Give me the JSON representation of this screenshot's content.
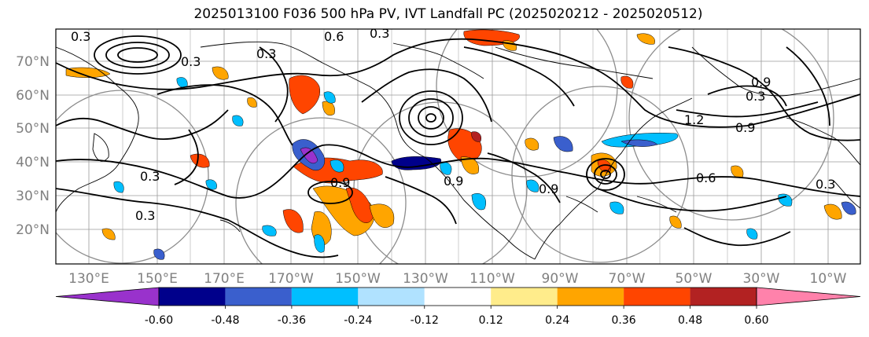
{
  "title": "2025013100 F036 500 hPa PV, IVT Landfall PC (2025020212 - 2025020512)",
  "lat_ticks": [
    "70°N",
    "60°N",
    "50°N",
    "40°N",
    "30°N",
    "20°N"
  ],
  "lon_ticks": [
    "130°E",
    "150°E",
    "170°E",
    "170°W",
    "150°W",
    "130°W",
    "110°W",
    "90°W",
    "70°W",
    "50°W",
    "30°W",
    "10°W"
  ],
  "colorbar": {
    "tick_labels": [
      "-0.60",
      "-0.48",
      "-0.36",
      "-0.24",
      "-0.12",
      "0.12",
      "0.24",
      "0.36",
      "0.48",
      "0.60"
    ],
    "colors": [
      "#9932CC",
      "#00008B",
      "#3A5FCD",
      "#00BFFF",
      "#B0E2FF",
      "#FFFFFF",
      "#FFEC8B",
      "#FFA500",
      "#FF4500",
      "#B22222",
      "#FF82AB"
    ]
  },
  "contour_labels": [
    "0.6",
    "0.3",
    "0.3",
    "0.3",
    "0.3",
    "0.9",
    "0.9",
    "0.6",
    "0.3",
    "0.3",
    "1.2",
    "0.9",
    "0.3",
    "0.9",
    "0.9",
    "0.3"
  ]
}
